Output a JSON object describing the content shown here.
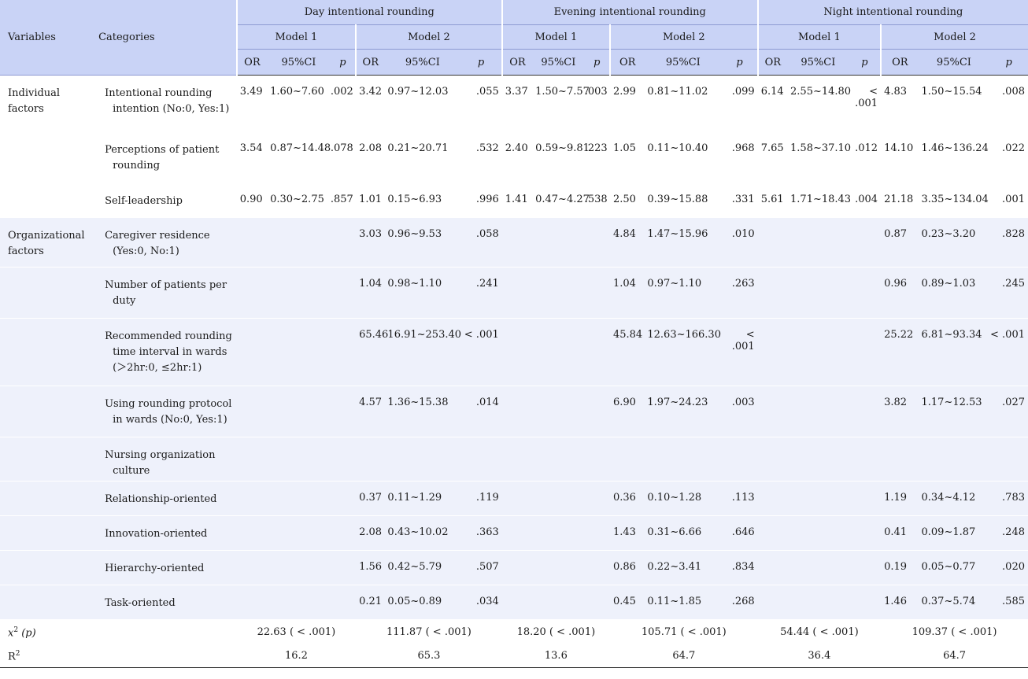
{
  "header": {
    "variables": "Variables",
    "categories": "Categories",
    "groups": [
      "Day intentional rounding",
      "Evening intentional rounding",
      "Night intentional rounding"
    ],
    "model1": "Model 1",
    "model2": "Model 2",
    "or": "OR",
    "ci": "95%CI",
    "p": "p"
  },
  "rows": [
    {
      "variable": "Individual factors",
      "category": "Intentional rounding intention (No:0, Yes:1)",
      "values": [
        "3.49",
        "1.60~7.60",
        ".002",
        "3.42",
        "0.97~12.03",
        ".055",
        "3.37",
        "1.50~7.57",
        ".003",
        "2.99",
        "0.81~11.02",
        ".099",
        "6.14",
        "2.55~14.80",
        "< .001",
        "4.83",
        "1.50~15.54",
        ".008"
      ]
    },
    {
      "variable": "",
      "category": "Perceptions of patient rounding",
      "values": [
        "3.54",
        "0.87~14.48",
        ".078",
        "2.08",
        "0.21~20.71",
        ".532",
        "2.40",
        "0.59~9.81",
        ".223",
        "1.05",
        "0.11~10.40",
        ".968",
        "7.65",
        "1.58~37.10",
        ".012",
        "14.10",
        "1.46~136.24",
        ".022"
      ]
    },
    {
      "variable": "",
      "category": "Self-leadership",
      "values": [
        "0.90",
        "0.30~2.75",
        ".857",
        "1.01",
        "0.15~6.93",
        ".996",
        "1.41",
        "0.47~4.27",
        ".538",
        "2.50",
        "0.39~15.88",
        ".331",
        "5.61",
        "1.71~18.43",
        ".004",
        "21.18",
        "3.35~134.04",
        ".001"
      ]
    },
    {
      "variable": "Organizational factors",
      "category": "Caregiver residence (Yes:0, No:1)",
      "values": [
        "",
        "",
        "",
        "3.03",
        "0.96~9.53",
        ".058",
        "",
        "",
        "",
        "4.84",
        "1.47~15.96",
        ".010",
        "",
        "",
        "",
        "0.87",
        "0.23~3.20",
        ".828"
      ]
    },
    {
      "variable": "",
      "category": "Number of patients per duty",
      "values": [
        "",
        "",
        "",
        "1.04",
        "0.98~1.10",
        ".241",
        "",
        "",
        "",
        "1.04",
        "0.97~1.10",
        ".263",
        "",
        "",
        "",
        "0.96",
        "0.89~1.03",
        ".245"
      ]
    },
    {
      "variable": "",
      "category": "Recommended rounding time interval in wards (＞2hr:0, ≤2hr:1)",
      "values": [
        "",
        "",
        "",
        "65.46",
        "16.91~253.40",
        "< .001",
        "",
        "",
        "",
        "45.84",
        "12.63~166.30",
        "< .001",
        "",
        "",
        "",
        "25.22",
        "6.81~93.34",
        "< .001"
      ]
    },
    {
      "variable": "",
      "category": "Using rounding protocol in wards (No:0, Yes:1)",
      "values": [
        "",
        "",
        "",
        "4.57",
        "1.36~15.38",
        ".014",
        "",
        "",
        "",
        "6.90",
        "1.97~24.23",
        ".003",
        "",
        "",
        "",
        "3.82",
        "1.17~12.53",
        ".027"
      ]
    },
    {
      "variable": "",
      "category": "Nursing organization culture",
      "values": [
        "",
        "",
        "",
        "",
        "",
        "",
        "",
        "",
        "",
        "",
        "",
        "",
        "",
        "",
        "",
        "",
        "",
        ""
      ]
    },
    {
      "variable": "",
      "category": "Relationship-oriented",
      "values": [
        "",
        "",
        "",
        "0.37",
        "0.11~1.29",
        ".119",
        "",
        "",
        "",
        "0.36",
        "0.10~1.28",
        ".113",
        "",
        "",
        "",
        "1.19",
        "0.34~4.12",
        ".783"
      ]
    },
    {
      "variable": "",
      "category": "Innovation-oriented",
      "values": [
        "",
        "",
        "",
        "2.08",
        "0.43~10.02",
        ".363",
        "",
        "",
        "",
        "1.43",
        "0.31~6.66",
        ".646",
        "",
        "",
        "",
        "0.41",
        "0.09~1.87",
        ".248"
      ]
    },
    {
      "variable": "",
      "category": "Hierarchy-oriented",
      "values": [
        "",
        "",
        "",
        "1.56",
        "0.42~5.79",
        ".507",
        "",
        "",
        "",
        "0.86",
        "0.22~3.41",
        ".834",
        "",
        "",
        "",
        "0.19",
        "0.05~0.77",
        ".020"
      ]
    },
    {
      "variable": "",
      "category": "Task-oriented",
      "values": [
        "",
        "",
        "",
        "0.21",
        "0.05~0.89",
        ".034",
        "",
        "",
        "",
        "0.45",
        "0.11~1.85",
        ".268",
        "",
        "",
        "",
        "1.46",
        "0.37~5.74",
        ".585"
      ]
    }
  ],
  "chi": {
    "label_x": "x",
    "label_sup": "2",
    "label_rest": " (p)",
    "values": [
      "22.63 ( < .001)",
      "111.87 ( < .001)",
      "18.20 ( < .001)",
      "105.71 ( < .001)",
      "54.44 ( < .001)",
      "109.37 ( < .001)"
    ]
  },
  "r2": {
    "label": "R",
    "label_sup": "2",
    "values": [
      "16.2",
      "65.3",
      "13.6",
      "64.7",
      "36.4",
      "64.7"
    ]
  }
}
